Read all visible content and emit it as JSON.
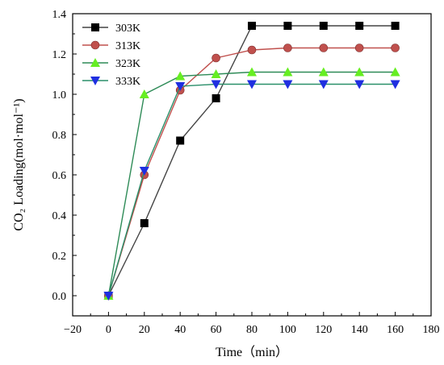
{
  "chart_data": {
    "type": "line",
    "xlabel": "Time（min）",
    "ylabel": "CO₂ Loading(mol·mol⁻¹)",
    "xlim": [
      -20,
      180
    ],
    "ylim": [
      -0.1,
      1.4
    ],
    "xticks": [
      "−20",
      "0",
      "20",
      "40",
      "60",
      "80",
      "100",
      "120",
      "140",
      "160",
      "180"
    ],
    "yticks": [
      "0.0",
      "0.2",
      "0.4",
      "0.6",
      "0.8",
      "1.0",
      "1.2",
      "1.4"
    ],
    "x": [
      0,
      20,
      40,
      60,
      80,
      100,
      120,
      140,
      160
    ],
    "legend_position": "top-left",
    "grid": false,
    "series": [
      {
        "name": "303K",
        "marker": "square",
        "line_color": "#444444",
        "marker_color": "#000000",
        "values": [
          0,
          0.36,
          0.77,
          0.98,
          1.34,
          1.34,
          1.34,
          1.34,
          1.34
        ]
      },
      {
        "name": "313K",
        "marker": "circle",
        "line_color": "#c0504d",
        "marker_color": "#c0504d",
        "values": [
          0,
          0.6,
          1.02,
          1.18,
          1.22,
          1.23,
          1.23,
          1.23,
          1.23
        ]
      },
      {
        "name": "323K",
        "marker": "triangle-up",
        "line_color": "#2e8b57",
        "marker_color": "#66ee22",
        "values": [
          0,
          1.0,
          1.09,
          1.1,
          1.11,
          1.11,
          1.11,
          1.11,
          1.11
        ]
      },
      {
        "name": "333K",
        "marker": "triangle-down",
        "line_color": "#2a8f6a",
        "marker_color": "#1f2fe0",
        "values": [
          0,
          0.62,
          1.04,
          1.05,
          1.05,
          1.05,
          1.05,
          1.05,
          1.05
        ]
      }
    ]
  }
}
